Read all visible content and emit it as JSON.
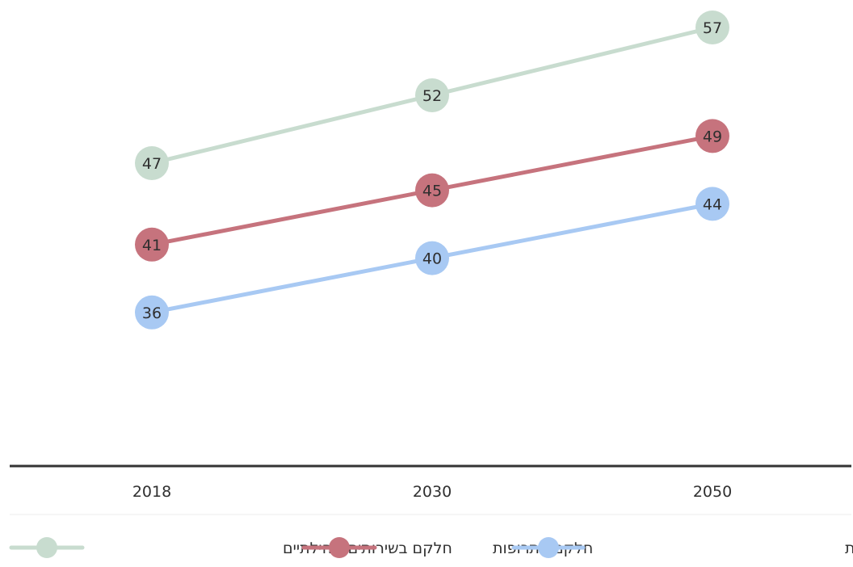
{
  "chart_data": {
    "type": "line",
    "x": [
      "2018",
      "2030",
      "2050"
    ],
    "series": [
      {
        "name": "חלקם בשירותים קהילתיים",
        "color": "#c8dccf",
        "values": [
          47,
          52,
          57
        ]
      },
      {
        "name": "חלקם בתרופות",
        "color": "#c6737d",
        "values": [
          41,
          45,
          49
        ]
      },
      {
        "name": "חלקם בהוצאה הכללית על בריאות",
        "color": "#a8c9f3",
        "values": [
          36,
          40,
          44
        ]
      }
    ],
    "data_labels": true,
    "grid": false,
    "legend_position": "bottom"
  }
}
